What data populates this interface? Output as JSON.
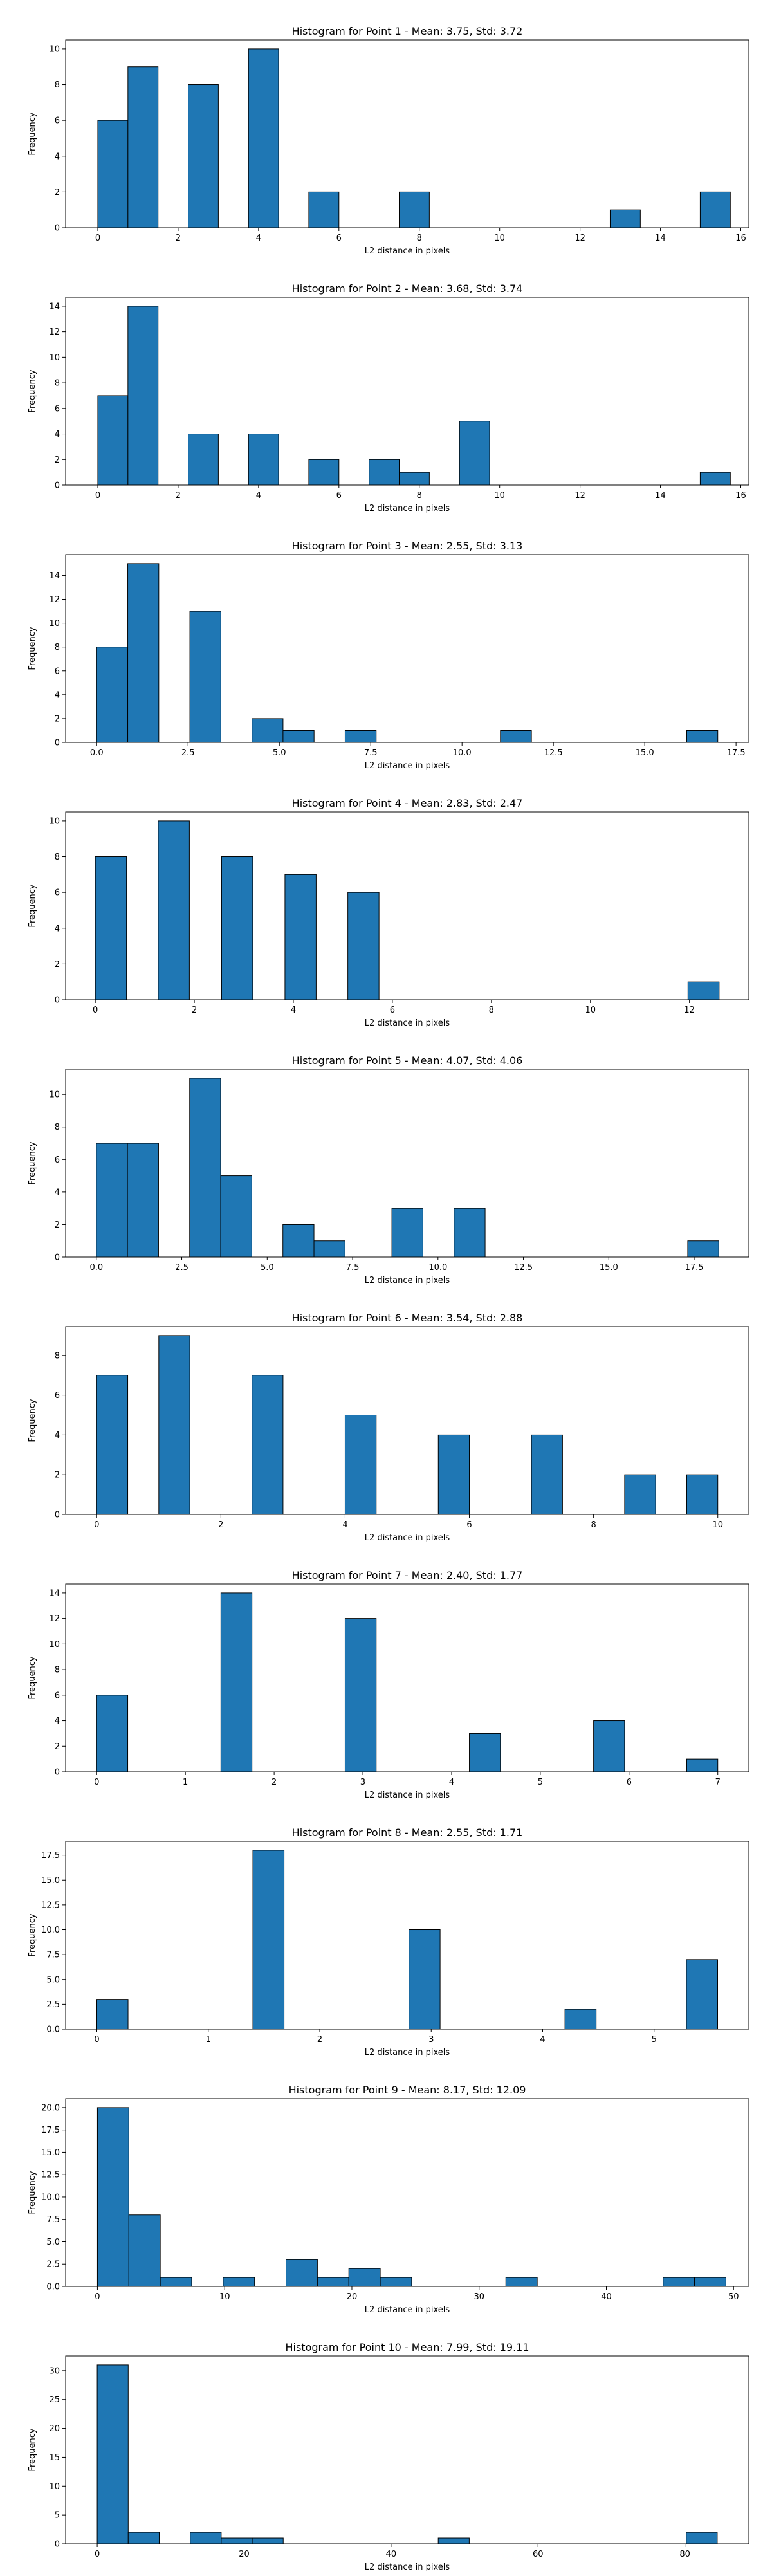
{
  "chart_data": [
    {
      "type": "bar",
      "title": "Histogram for Point 1 - Mean: 3.75, Std: 3.72",
      "xlabel": "L2 distance in pixels",
      "ylabel": "Frequency",
      "xlim": [
        -0.8,
        16.2
      ],
      "ylim": [
        0,
        10.5
      ],
      "xticks": [
        0,
        2,
        4,
        6,
        8,
        10,
        12,
        14,
        16
      ],
      "xtick_labels": [
        "0",
        "2",
        "4",
        "6",
        "8",
        "10",
        "12",
        "14",
        "16"
      ],
      "yticks": [
        0,
        2,
        4,
        6,
        8,
        10
      ],
      "ytick_labels": [
        "0",
        "2",
        "4",
        "6",
        "8",
        "10"
      ],
      "bar_width": 0.75,
      "bars": [
        {
          "x": 0,
          "value": 6
        },
        {
          "x": 0.75,
          "value": 9
        },
        {
          "x": 2.25,
          "value": 8
        },
        {
          "x": 3.75,
          "value": 10
        },
        {
          "x": 5.25,
          "value": 2
        },
        {
          "x": 7.5,
          "value": 2
        },
        {
          "x": 12.75,
          "value": 1
        },
        {
          "x": 14.99,
          "value": 2
        }
      ]
    },
    {
      "type": "bar",
      "title": "Histogram for Point 2 - Mean: 3.68, Std: 3.74",
      "xlabel": "L2 distance in pixels",
      "ylabel": "Frequency",
      "xlim": [
        -0.8,
        16.2
      ],
      "ylim": [
        0,
        14.7
      ],
      "xticks": [
        0,
        2,
        4,
        6,
        8,
        10,
        12,
        14,
        16
      ],
      "xtick_labels": [
        "0",
        "2",
        "4",
        "6",
        "8",
        "10",
        "12",
        "14",
        "16"
      ],
      "yticks": [
        0,
        2,
        4,
        6,
        8,
        10,
        12,
        14
      ],
      "ytick_labels": [
        "0",
        "2",
        "4",
        "6",
        "8",
        "10",
        "12",
        "14"
      ],
      "bar_width": 0.75,
      "bars": [
        {
          "x": 0,
          "value": 7
        },
        {
          "x": 0.75,
          "value": 14
        },
        {
          "x": 2.25,
          "value": 4
        },
        {
          "x": 3.75,
          "value": 4
        },
        {
          "x": 5.25,
          "value": 2
        },
        {
          "x": 6.75,
          "value": 2
        },
        {
          "x": 7.5,
          "value": 1
        },
        {
          "x": 9.0,
          "value": 5
        },
        {
          "x": 14.99,
          "value": 1
        }
      ]
    },
    {
      "type": "bar",
      "title": "Histogram for Point 3 - Mean: 2.55, Std: 3.13",
      "xlabel": "L2 distance in pixels",
      "ylabel": "Frequency",
      "xlim": [
        -0.85,
        17.85
      ],
      "ylim": [
        0,
        15.75
      ],
      "xticks": [
        0,
        2.5,
        5,
        7.5,
        10,
        12.5,
        15,
        17.5
      ],
      "xtick_labels": [
        "0.0",
        "2.5",
        "5.0",
        "7.5",
        "10.0",
        "12.5",
        "15.0",
        "17.5"
      ],
      "yticks": [
        0,
        2,
        4,
        6,
        8,
        10,
        12,
        14
      ],
      "ytick_labels": [
        "0",
        "2",
        "4",
        "6",
        "8",
        "10",
        "12",
        "14"
      ],
      "bar_width": 0.85,
      "bars": [
        {
          "x": 0,
          "value": 8
        },
        {
          "x": 0.85,
          "value": 15
        },
        {
          "x": 2.55,
          "value": 11
        },
        {
          "x": 4.25,
          "value": 2
        },
        {
          "x": 5.1,
          "value": 1
        },
        {
          "x": 6.8,
          "value": 1
        },
        {
          "x": 11.05,
          "value": 1
        },
        {
          "x": 16.15,
          "value": 1
        }
      ]
    },
    {
      "type": "bar",
      "title": "Histogram for Point 4 - Mean: 2.83, Std: 2.47",
      "xlabel": "L2 distance in pixels",
      "ylabel": "Frequency",
      "xlim": [
        -0.6,
        13.2
      ],
      "ylim": [
        0,
        10.5
      ],
      "xticks": [
        0,
        2,
        4,
        6,
        8,
        10,
        12
      ],
      "xtick_labels": [
        "0",
        "2",
        "4",
        "6",
        "8",
        "10",
        "12"
      ],
      "yticks": [
        0,
        2,
        4,
        6,
        8,
        10
      ],
      "ytick_labels": [
        "0",
        "2",
        "4",
        "6",
        "8",
        "10"
      ],
      "bar_width": 0.63,
      "bars": [
        {
          "x": 0,
          "value": 8
        },
        {
          "x": 1.27,
          "value": 10
        },
        {
          "x": 2.55,
          "value": 8
        },
        {
          "x": 3.83,
          "value": 7
        },
        {
          "x": 5.1,
          "value": 6
        },
        {
          "x": 11.97,
          "value": 1
        }
      ]
    },
    {
      "type": "bar",
      "title": "Histogram for Point 5 - Mean: 4.07, Std: 4.06",
      "xlabel": "L2 distance in pixels",
      "ylabel": "Frequency",
      "xlim": [
        -0.9,
        19.1
      ],
      "ylim": [
        0,
        11.55
      ],
      "xticks": [
        0,
        2.5,
        5,
        7.5,
        10,
        12.5,
        15,
        17.5
      ],
      "xtick_labels": [
        "0.0",
        "2.5",
        "5.0",
        "7.5",
        "10.0",
        "12.5",
        "15.0",
        "17.5"
      ],
      "yticks": [
        0,
        2,
        4,
        6,
        8,
        10
      ],
      "ytick_labels": [
        "0",
        "2",
        "4",
        "6",
        "8",
        "10"
      ],
      "bar_width": 0.91,
      "bars": [
        {
          "x": 0,
          "value": 7
        },
        {
          "x": 0.91,
          "value": 7
        },
        {
          "x": 2.73,
          "value": 11
        },
        {
          "x": 3.64,
          "value": 5
        },
        {
          "x": 5.46,
          "value": 2
        },
        {
          "x": 6.37,
          "value": 1
        },
        {
          "x": 8.65,
          "value": 3
        },
        {
          "x": 10.47,
          "value": 3
        },
        {
          "x": 17.31,
          "value": 1
        }
      ]
    },
    {
      "type": "bar",
      "title": "Histogram for Point 6 - Mean: 3.54, Std: 2.88",
      "xlabel": "L2 distance in pixels",
      "ylabel": "Frequency",
      "xlim": [
        -0.5,
        10.5
      ],
      "ylim": [
        0,
        9.45
      ],
      "xticks": [
        0,
        2,
        4,
        6,
        8,
        10
      ],
      "xtick_labels": [
        "0",
        "2",
        "4",
        "6",
        "8",
        "10"
      ],
      "yticks": [
        0,
        2,
        4,
        6,
        8
      ],
      "ytick_labels": [
        "0",
        "2",
        "4",
        "6",
        "8"
      ],
      "bar_width": 0.5,
      "bars": [
        {
          "x": 0,
          "value": 7
        },
        {
          "x": 1.0,
          "value": 9
        },
        {
          "x": 2.5,
          "value": 7
        },
        {
          "x": 4.0,
          "value": 5
        },
        {
          "x": 5.5,
          "value": 4
        },
        {
          "x": 7.0,
          "value": 4
        },
        {
          "x": 8.5,
          "value": 2
        },
        {
          "x": 9.5,
          "value": 2
        }
      ]
    },
    {
      "type": "bar",
      "title": "Histogram for Point 7 - Mean: 2.40, Std: 1.77",
      "xlabel": "L2 distance in pixels",
      "ylabel": "Frequency",
      "xlim": [
        -0.35,
        7.35
      ],
      "ylim": [
        0,
        14.7
      ],
      "xticks": [
        0,
        1,
        2,
        3,
        4,
        5,
        6,
        7
      ],
      "xtick_labels": [
        "0",
        "1",
        "2",
        "3",
        "4",
        "5",
        "6",
        "7"
      ],
      "yticks": [
        0,
        2,
        4,
        6,
        8,
        10,
        12,
        14
      ],
      "ytick_labels": [
        "0",
        "2",
        "4",
        "6",
        "8",
        "10",
        "12",
        "14"
      ],
      "bar_width": 0.35,
      "bars": [
        {
          "x": 0,
          "value": 6
        },
        {
          "x": 1.4,
          "value": 14
        },
        {
          "x": 2.8,
          "value": 12
        },
        {
          "x": 4.2,
          "value": 3
        },
        {
          "x": 5.6,
          "value": 4
        },
        {
          "x": 6.65,
          "value": 1
        }
      ]
    },
    {
      "type": "bar",
      "title": "Histogram for Point 8 - Mean: 2.55, Std: 1.71",
      "xlabel": "L2 distance in pixels",
      "ylabel": "Frequency",
      "xlim": [
        -0.28,
        5.85
      ],
      "ylim": [
        0,
        18.9
      ],
      "xticks": [
        0,
        1,
        2,
        3,
        4,
        5
      ],
      "xtick_labels": [
        "0",
        "1",
        "2",
        "3",
        "4",
        "5"
      ],
      "yticks": [
        0,
        2.5,
        5,
        7.5,
        10,
        12.5,
        15,
        17.5
      ],
      "ytick_labels": [
        "0.0",
        "2.5",
        "5.0",
        "7.5",
        "10.0",
        "12.5",
        "15.0",
        "17.5"
      ],
      "bar_width": 0.28,
      "bars": [
        {
          "x": 0,
          "value": 3
        },
        {
          "x": 1.4,
          "value": 18
        },
        {
          "x": 2.8,
          "value": 10
        },
        {
          "x": 4.2,
          "value": 2
        },
        {
          "x": 5.29,
          "value": 7
        }
      ]
    },
    {
      "type": "bar",
      "title": "Histogram for Point 9 - Mean: 8.17, Std: 12.09",
      "xlabel": "L2 distance in pixels",
      "ylabel": "Frequency",
      "xlim": [
        -2.5,
        51.2
      ],
      "ylim": [
        0,
        21
      ],
      "xticks": [
        0,
        10,
        20,
        30,
        40,
        50
      ],
      "xtick_labels": [
        "0",
        "10",
        "20",
        "30",
        "40",
        "50"
      ],
      "yticks": [
        0,
        2.5,
        5,
        7.5,
        10,
        12.5,
        15,
        17.5,
        20
      ],
      "ytick_labels": [
        "0.0",
        "2.5",
        "5.0",
        "7.5",
        "10.0",
        "12.5",
        "15.0",
        "17.5",
        "20.0"
      ],
      "bar_width": 2.47,
      "bars": [
        {
          "x": 0,
          "value": 20
        },
        {
          "x": 2.47,
          "value": 8
        },
        {
          "x": 4.94,
          "value": 1
        },
        {
          "x": 9.88,
          "value": 1
        },
        {
          "x": 14.82,
          "value": 3
        },
        {
          "x": 17.29,
          "value": 1
        },
        {
          "x": 19.76,
          "value": 2
        },
        {
          "x": 22.23,
          "value": 1
        },
        {
          "x": 32.1,
          "value": 1
        },
        {
          "x": 44.46,
          "value": 1
        },
        {
          "x": 46.93,
          "value": 1
        }
      ]
    },
    {
      "type": "bar",
      "title": "Histogram for Point 10 - Mean: 7.99, Std: 19.11",
      "xlabel": "L2 distance in pixels",
      "ylabel": "Frequency",
      "xlim": [
        -4.3,
        88.7
      ],
      "ylim": [
        0,
        32.55
      ],
      "xticks": [
        0,
        20,
        40,
        60,
        80
      ],
      "xtick_labels": [
        "0",
        "20",
        "40",
        "60",
        "80"
      ],
      "yticks": [
        0,
        5,
        10,
        15,
        20,
        25,
        30
      ],
      "ytick_labels": [
        "0",
        "5",
        "10",
        "15",
        "20",
        "25",
        "30"
      ],
      "bar_width": 4.22,
      "bars": [
        {
          "x": 0,
          "value": 31
        },
        {
          "x": 4.22,
          "value": 2
        },
        {
          "x": 12.66,
          "value": 2
        },
        {
          "x": 16.88,
          "value": 1
        },
        {
          "x": 21.1,
          "value": 1
        },
        {
          "x": 46.42,
          "value": 1
        },
        {
          "x": 80.18,
          "value": 2
        }
      ]
    }
  ],
  "style": {
    "bar_color": "#1f77b4",
    "edge_color": "#000000",
    "axis_color": "#000000"
  }
}
